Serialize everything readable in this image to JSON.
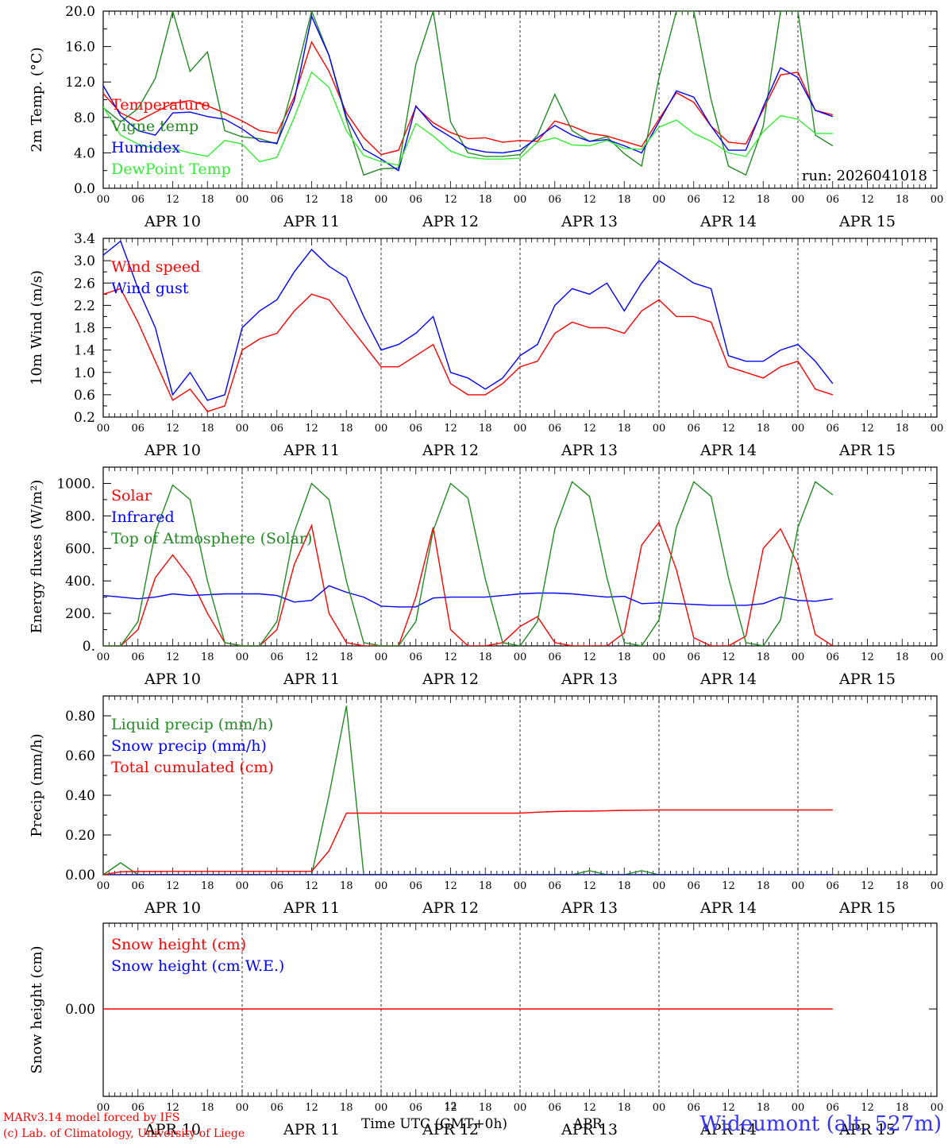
{
  "footer": {
    "model_line": "MARv3.14 model forced by IFS",
    "copyright_line": "(c) Lab. of Climatology, University of Liege",
    "time_axis_label": "Time UTC (GMT+0h)",
    "time_axis_small": "12",
    "time_axis_month": "APR",
    "station": "Wideumont (alt. 527m)"
  },
  "colors": {
    "red": "#ff0000",
    "blue": "#0000ff",
    "darkgreen": "#228b22",
    "lightgreen": "#33ee33",
    "black": "#000000"
  },
  "x_axis": {
    "hour_ticks": [
      "00",
      "06",
      "12",
      "18"
    ],
    "end_tick": "00",
    "days": [
      "APR 10",
      "APR 11",
      "APR 12",
      "APR 13",
      "APR 14",
      "APR 15"
    ]
  },
  "chart_data": [
    {
      "type": "line",
      "id": "temp",
      "ylabel": "2m Temp. (°C)",
      "ylim": [
        0,
        20
      ],
      "yticks": [
        "0.0",
        "4.0",
        "8.0",
        "12.0",
        "16.0",
        "20.0"
      ],
      "run_label": "run: 2026041018",
      "x_hours_step": 3,
      "series": [
        {
          "name": "Temperature",
          "color": "red",
          "values": [
            10.7,
            8.5,
            7.6,
            8.6,
            9.6,
            9.9,
            9.3,
            8.5,
            7.6,
            6.5,
            6.2,
            10.3,
            16.5,
            13.2,
            8.5,
            5.7,
            3.8,
            4.3,
            9.2,
            7.4,
            6.3,
            5.6,
            5.7,
            5.2,
            5.4,
            5.3,
            7.6,
            7.0,
            6.2,
            5.9,
            5.3,
            4.7,
            7.8,
            10.8,
            9.7,
            7.0,
            5.2,
            5.0,
            8.9,
            12.8,
            13.1,
            8.8,
            8.3
          ]
        },
        {
          "name": "Vigne temp",
          "color": "darkgreen",
          "values": [
            9.1,
            7.5,
            9.0,
            12.4,
            20.0,
            13.2,
            15.4,
            6.5,
            5.8,
            5.6,
            5.0,
            12.0,
            20.0,
            15.0,
            7.7,
            1.5,
            2.2,
            2.3,
            14.0,
            20.0,
            7.5,
            4.0,
            3.6,
            3.6,
            3.8,
            6.0,
            10.6,
            6.5,
            5.3,
            5.8,
            3.9,
            2.5,
            12.5,
            20.0,
            20.0,
            10.0,
            2.5,
            1.5,
            7.0,
            20.0,
            20.0,
            6.0,
            4.8
          ]
        },
        {
          "name": "Humidex",
          "color": "blue",
          "values": [
            11.6,
            8.2,
            6.5,
            6.0,
            8.5,
            8.6,
            8.1,
            7.8,
            6.7,
            5.3,
            5.1,
            9.9,
            19.4,
            15.0,
            8.0,
            4.4,
            3.3,
            2.0,
            9.3,
            7.0,
            5.8,
            4.5,
            4.1,
            4.0,
            4.3,
            5.7,
            7.1,
            6.0,
            5.3,
            5.5,
            4.8,
            4.0,
            7.5,
            11.0,
            10.3,
            7.0,
            4.3,
            4.3,
            9.2,
            13.6,
            12.5,
            8.8,
            8.1
          ]
        },
        {
          "name": "DewPoint Temp",
          "color": "lightgreen",
          "values": [
            9.2,
            6.0,
            5.0,
            4.5,
            4.5,
            4.0,
            3.6,
            5.4,
            5.0,
            3.0,
            3.5,
            8.0,
            13.1,
            11.4,
            6.5,
            3.7,
            3.0,
            2.6,
            7.3,
            5.9,
            4.2,
            3.5,
            3.3,
            3.3,
            3.4,
            5.2,
            5.7,
            4.9,
            4.8,
            5.4,
            4.5,
            4.4,
            6.9,
            7.7,
            6.2,
            5.3,
            4.0,
            3.6,
            6.4,
            8.2,
            7.8,
            6.2,
            6.2
          ]
        }
      ]
    },
    {
      "type": "line",
      "id": "wind",
      "ylabel": "10m Wind (m/s)",
      "ylim": [
        0.2,
        3.4
      ],
      "yticks": [
        "0.2",
        "0.6",
        "1.0",
        "1.4",
        "1.8",
        "2.2",
        "2.6",
        "3.0",
        "3.4"
      ],
      "x_hours_step": 3,
      "series": [
        {
          "name": "Wind speed",
          "color": "red",
          "values": [
            2.4,
            2.5,
            1.9,
            1.2,
            0.5,
            0.7,
            0.3,
            0.4,
            1.4,
            1.6,
            1.7,
            2.1,
            2.4,
            2.3,
            1.9,
            1.5,
            1.1,
            1.1,
            1.3,
            1.5,
            0.8,
            0.6,
            0.6,
            0.8,
            1.1,
            1.2,
            1.7,
            1.9,
            1.8,
            1.8,
            1.7,
            2.1,
            2.3,
            2.0,
            2.0,
            1.9,
            1.1,
            1.0,
            0.9,
            1.1,
            1.2,
            0.7,
            0.6
          ]
        },
        {
          "name": "Wind gust",
          "color": "blue",
          "values": [
            3.1,
            3.35,
            2.5,
            1.8,
            0.6,
            1.0,
            0.5,
            0.6,
            1.8,
            2.1,
            2.3,
            2.8,
            3.2,
            2.9,
            2.7,
            2.0,
            1.4,
            1.5,
            1.7,
            2.0,
            1.0,
            0.9,
            0.7,
            0.9,
            1.3,
            1.5,
            2.2,
            2.5,
            2.4,
            2.6,
            2.1,
            2.6,
            3.0,
            2.8,
            2.6,
            2.5,
            1.3,
            1.2,
            1.2,
            1.4,
            1.5,
            1.2,
            0.8
          ]
        }
      ]
    },
    {
      "type": "line",
      "id": "energy",
      "ylabel": "Energy fluxes (W/m²)",
      "ylim": [
        0,
        1100
      ],
      "yticks": [
        "0.",
        "200.",
        "400.",
        "600.",
        "800.",
        "1000."
      ],
      "x_hours_step": 3,
      "series": [
        {
          "name": "Solar",
          "color": "red",
          "values": [
            0,
            0,
            100,
            420,
            560,
            420,
            200,
            20,
            0,
            0,
            100,
            500,
            740,
            200,
            20,
            0,
            0,
            0,
            300,
            730,
            100,
            0,
            0,
            20,
            120,
            180,
            20,
            0,
            0,
            0,
            80,
            620,
            760,
            470,
            50,
            0,
            0,
            60,
            600,
            720,
            500,
            70,
            0
          ]
        },
        {
          "name": "Infrared",
          "color": "blue",
          "values": [
            310,
            300,
            290,
            300,
            320,
            310,
            315,
            320,
            320,
            320,
            310,
            270,
            280,
            370,
            330,
            300,
            245,
            240,
            240,
            295,
            300,
            300,
            300,
            310,
            320,
            325,
            325,
            320,
            310,
            300,
            305,
            260,
            265,
            260,
            255,
            250,
            250,
            250,
            260,
            300,
            280,
            275,
            290
          ]
        },
        {
          "name": "Top of Atmosphere (Solar)",
          "color": "darkgreen",
          "values": [
            0,
            0,
            150,
            700,
            990,
            900,
            400,
            20,
            0,
            0,
            150,
            700,
            1000,
            900,
            400,
            20,
            0,
            0,
            150,
            710,
            1000,
            910,
            410,
            20,
            0,
            150,
            720,
            1010,
            920,
            420,
            20,
            0,
            160,
            730,
            1010,
            920,
            420,
            20,
            0,
            160,
            730,
            1010,
            930
          ]
        }
      ]
    },
    {
      "type": "line",
      "id": "precip",
      "ylabel": "Precip (mm/h)",
      "ylim": [
        0,
        0.9
      ],
      "yticks": [
        "0.00",
        "0.20",
        "0.40",
        "0.60",
        "0.80"
      ],
      "x_hours_step": 3,
      "series": [
        {
          "name": "Liquid precip (mm/h)",
          "color": "darkgreen",
          "values": [
            0.0,
            0.06,
            0.0,
            0.0,
            0.0,
            0.0,
            0.0,
            0.0,
            0.0,
            0.0,
            0.0,
            0.0,
            0.0,
            0.4,
            0.85,
            0.0,
            0.0,
            0.0,
            0.0,
            0.0,
            0.0,
            0.0,
            0.0,
            0.0,
            0.0,
            0.0,
            0.0,
            0.0,
            0.02,
            0.0,
            0.0,
            0.02,
            0.0,
            0.0,
            0.0,
            0.0,
            0.0,
            0.0,
            0.0,
            0.0,
            0.0,
            0.0,
            0.0
          ]
        },
        {
          "name": "Snow precip (mm/h)",
          "color": "blue",
          "values": [
            0,
            0,
            0,
            0,
            0,
            0,
            0,
            0,
            0,
            0,
            0,
            0,
            0,
            0,
            0,
            0,
            0,
            0,
            0,
            0,
            0,
            0,
            0,
            0,
            0,
            0,
            0,
            0,
            0,
            0,
            0,
            0,
            0,
            0,
            0,
            0,
            0,
            0,
            0,
            0,
            0,
            0,
            0
          ]
        },
        {
          "name": "Total cumulated (cm)",
          "color": "red",
          "values": [
            0.0,
            0.015,
            0.016,
            0.016,
            0.017,
            0.017,
            0.017,
            0.017,
            0.017,
            0.017,
            0.017,
            0.017,
            0.017,
            0.12,
            0.31,
            0.31,
            0.31,
            0.31,
            0.31,
            0.31,
            0.31,
            0.31,
            0.31,
            0.31,
            0.31,
            0.315,
            0.318,
            0.32,
            0.32,
            0.322,
            0.324,
            0.325,
            0.326,
            0.326,
            0.326,
            0.326,
            0.326,
            0.326,
            0.326,
            0.326,
            0.326,
            0.326,
            0.326
          ]
        }
      ]
    },
    {
      "type": "line",
      "id": "snow",
      "ylabel": "Snow height (cm)",
      "ylim": [
        -0.01,
        0.01
      ],
      "yticks": [
        "0.00"
      ],
      "x_hours_step": 3,
      "series": [
        {
          "name": "Snow height (cm)",
          "color": "red",
          "values": [
            0,
            0,
            0,
            0,
            0,
            0,
            0,
            0,
            0,
            0,
            0,
            0,
            0,
            0,
            0,
            0,
            0,
            0,
            0,
            0,
            0,
            0,
            0,
            0,
            0,
            0,
            0,
            0,
            0,
            0,
            0,
            0,
            0,
            0,
            0,
            0,
            0,
            0,
            0,
            0,
            0,
            0,
            0
          ]
        },
        {
          "name": "Snow height (cm W.E.)",
          "color": "blue",
          "values": []
        }
      ]
    }
  ]
}
